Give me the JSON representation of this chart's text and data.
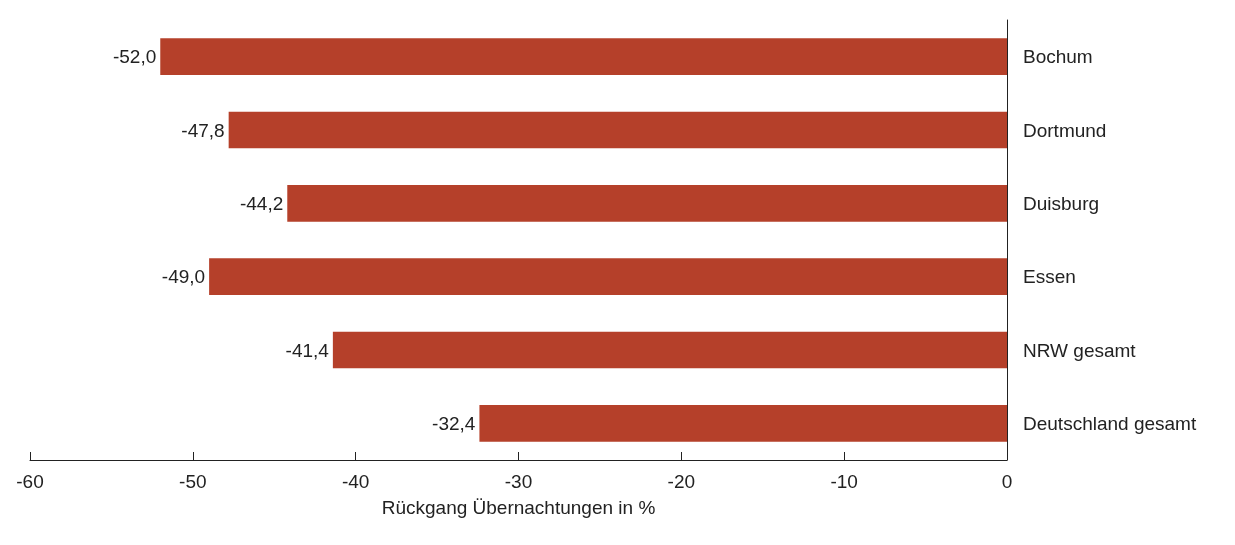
{
  "chart_data": {
    "type": "bar",
    "orientation": "horizontal",
    "xlabel": "Rückgang Übernachtungen in %",
    "categories": [
      "Bochum",
      "Dortmund",
      "Duisburg",
      "Essen",
      "NRW gesamt",
      "Deutschland gesamt"
    ],
    "values": [
      -52.0,
      -47.8,
      -44.2,
      -49.0,
      -41.4,
      -32.4
    ],
    "value_labels": [
      "-52,0",
      "-47,8",
      "-44,2",
      "-49,0",
      "-41,4",
      "-32,4"
    ],
    "color": "#b5402a",
    "xlim": [
      -60,
      0
    ],
    "xticks": [
      -60,
      -50,
      -40,
      -30,
      -20,
      -10,
      0
    ],
    "grid": false
  }
}
